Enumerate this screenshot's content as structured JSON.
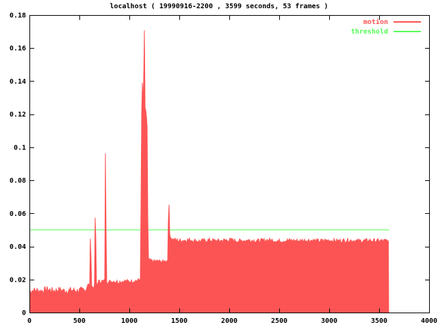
{
  "colors": {
    "background": "#ffffff",
    "axis": "#000000",
    "text": "#000000",
    "motion": "#fc5454",
    "threshold": "#54fc54"
  },
  "chart_data": {
    "type": "area",
    "title": "localhost ( 19990916-2200 , 3599 seconds, 53 frames )",
    "xlabel": "",
    "ylabel": "",
    "xlim": [
      0,
      4000
    ],
    "ylim": [
      0,
      0.18
    ],
    "grid": false,
    "legend_position": "top-right",
    "x_ticks": [
      0,
      500,
      1000,
      1500,
      2000,
      2500,
      3000,
      3500,
      4000
    ],
    "x_tick_labels": [
      "0",
      "500",
      "1000",
      "1500",
      "2000",
      "2500",
      "3000",
      "3500",
      "4000"
    ],
    "y_ticks": [
      0,
      0.02,
      0.04,
      0.06,
      0.08,
      0.1,
      0.12,
      0.14,
      0.16,
      0.18
    ],
    "y_tick_labels": [
      "0",
      "0.02",
      "0.04",
      "0.06",
      "0.08",
      "0.1",
      "0.12",
      "0.14",
      "0.16",
      "0.18"
    ],
    "series": [
      {
        "name": "motion",
        "color": "#fc5454",
        "style": "filled-area",
        "x_start": 0,
        "x_end": 3599,
        "envelope": [
          [
            0,
            0.013
          ],
          [
            60,
            0.0135
          ],
          [
            120,
            0.013
          ],
          [
            180,
            0.014
          ],
          [
            240,
            0.0132
          ],
          [
            300,
            0.0138
          ],
          [
            360,
            0.013
          ],
          [
            420,
            0.0136
          ],
          [
            480,
            0.0132
          ],
          [
            540,
            0.0136
          ],
          [
            575,
            0.014
          ],
          [
            585,
            0.017
          ],
          [
            592,
            0.0165
          ],
          [
            600,
            0.0155
          ],
          [
            610,
            0.016
          ],
          [
            613,
            0.022
          ],
          [
            616,
            0.0435
          ],
          [
            619,
            0.016
          ],
          [
            630,
            0.0155
          ],
          [
            645,
            0.015
          ],
          [
            659,
            0.016
          ],
          [
            662,
            0.03
          ],
          [
            664,
            0.0575
          ],
          [
            667,
            0.016
          ],
          [
            680,
            0.017
          ],
          [
            695,
            0.0185
          ],
          [
            720,
            0.019
          ],
          [
            745,
            0.0188
          ],
          [
            761,
            0.019
          ],
          [
            764,
            0.04
          ],
          [
            766,
            0.0955
          ],
          [
            769,
            0.019
          ],
          [
            800,
            0.0185
          ],
          [
            850,
            0.019
          ],
          [
            900,
            0.0185
          ],
          [
            950,
            0.019
          ],
          [
            1000,
            0.0188
          ],
          [
            1050,
            0.0192
          ],
          [
            1100,
            0.0195
          ],
          [
            1118,
            0.0205
          ],
          [
            1126,
            0.075
          ],
          [
            1130,
            0.118
          ],
          [
            1134,
            0.122
          ],
          [
            1136,
            0.139
          ],
          [
            1139,
            0.116
          ],
          [
            1143,
            0.121
          ],
          [
            1147,
            0.117
          ],
          [
            1151,
            0.133
          ],
          [
            1154,
            0.171
          ],
          [
            1157,
            0.124
          ],
          [
            1161,
            0.117
          ],
          [
            1166,
            0.12
          ],
          [
            1171,
            0.116
          ],
          [
            1176,
            0.119
          ],
          [
            1181,
            0.108
          ],
          [
            1186,
            0.055
          ],
          [
            1192,
            0.032
          ],
          [
            1240,
            0.031
          ],
          [
            1290,
            0.0312
          ],
          [
            1340,
            0.0308
          ],
          [
            1394,
            0.0315
          ],
          [
            1397,
            0.05
          ],
          [
            1400,
            0.0645
          ],
          [
            1403,
            0.048
          ],
          [
            1410,
            0.0465
          ],
          [
            1420,
            0.045
          ],
          [
            1435,
            0.0442
          ],
          [
            1500,
            0.0435
          ],
          [
            1600,
            0.044
          ],
          [
            1700,
            0.0432
          ],
          [
            1800,
            0.0438
          ],
          [
            1900,
            0.0434
          ],
          [
            2000,
            0.044
          ],
          [
            2100,
            0.0433
          ],
          [
            2200,
            0.0438
          ],
          [
            2300,
            0.0434
          ],
          [
            2400,
            0.0439
          ],
          [
            2500,
            0.0433
          ],
          [
            2600,
            0.0437
          ],
          [
            2700,
            0.0434
          ],
          [
            2800,
            0.0438
          ],
          [
            2900,
            0.0433
          ],
          [
            3000,
            0.0437
          ],
          [
            3100,
            0.0434
          ],
          [
            3200,
            0.0438
          ],
          [
            3300,
            0.0433
          ],
          [
            3400,
            0.0436
          ],
          [
            3500,
            0.0434
          ],
          [
            3599,
            0.0435
          ]
        ],
        "noise_regions": [
          {
            "x0": 0,
            "x1": 598,
            "amp": 0.002
          },
          {
            "x0": 598,
            "x1": 1120,
            "amp": 0.0013
          },
          {
            "x0": 1120,
            "x1": 1190,
            "amp": 0.003
          },
          {
            "x0": 1190,
            "x1": 1393,
            "amp": 0.001
          },
          {
            "x0": 1393,
            "x1": 1440,
            "amp": 0.0008
          },
          {
            "x0": 1440,
            "x1": 3599,
            "amp": 0.0013
          }
        ]
      },
      {
        "name": "threshold",
        "color": "#54fc54",
        "style": "hline",
        "value": 0.05
      }
    ]
  }
}
